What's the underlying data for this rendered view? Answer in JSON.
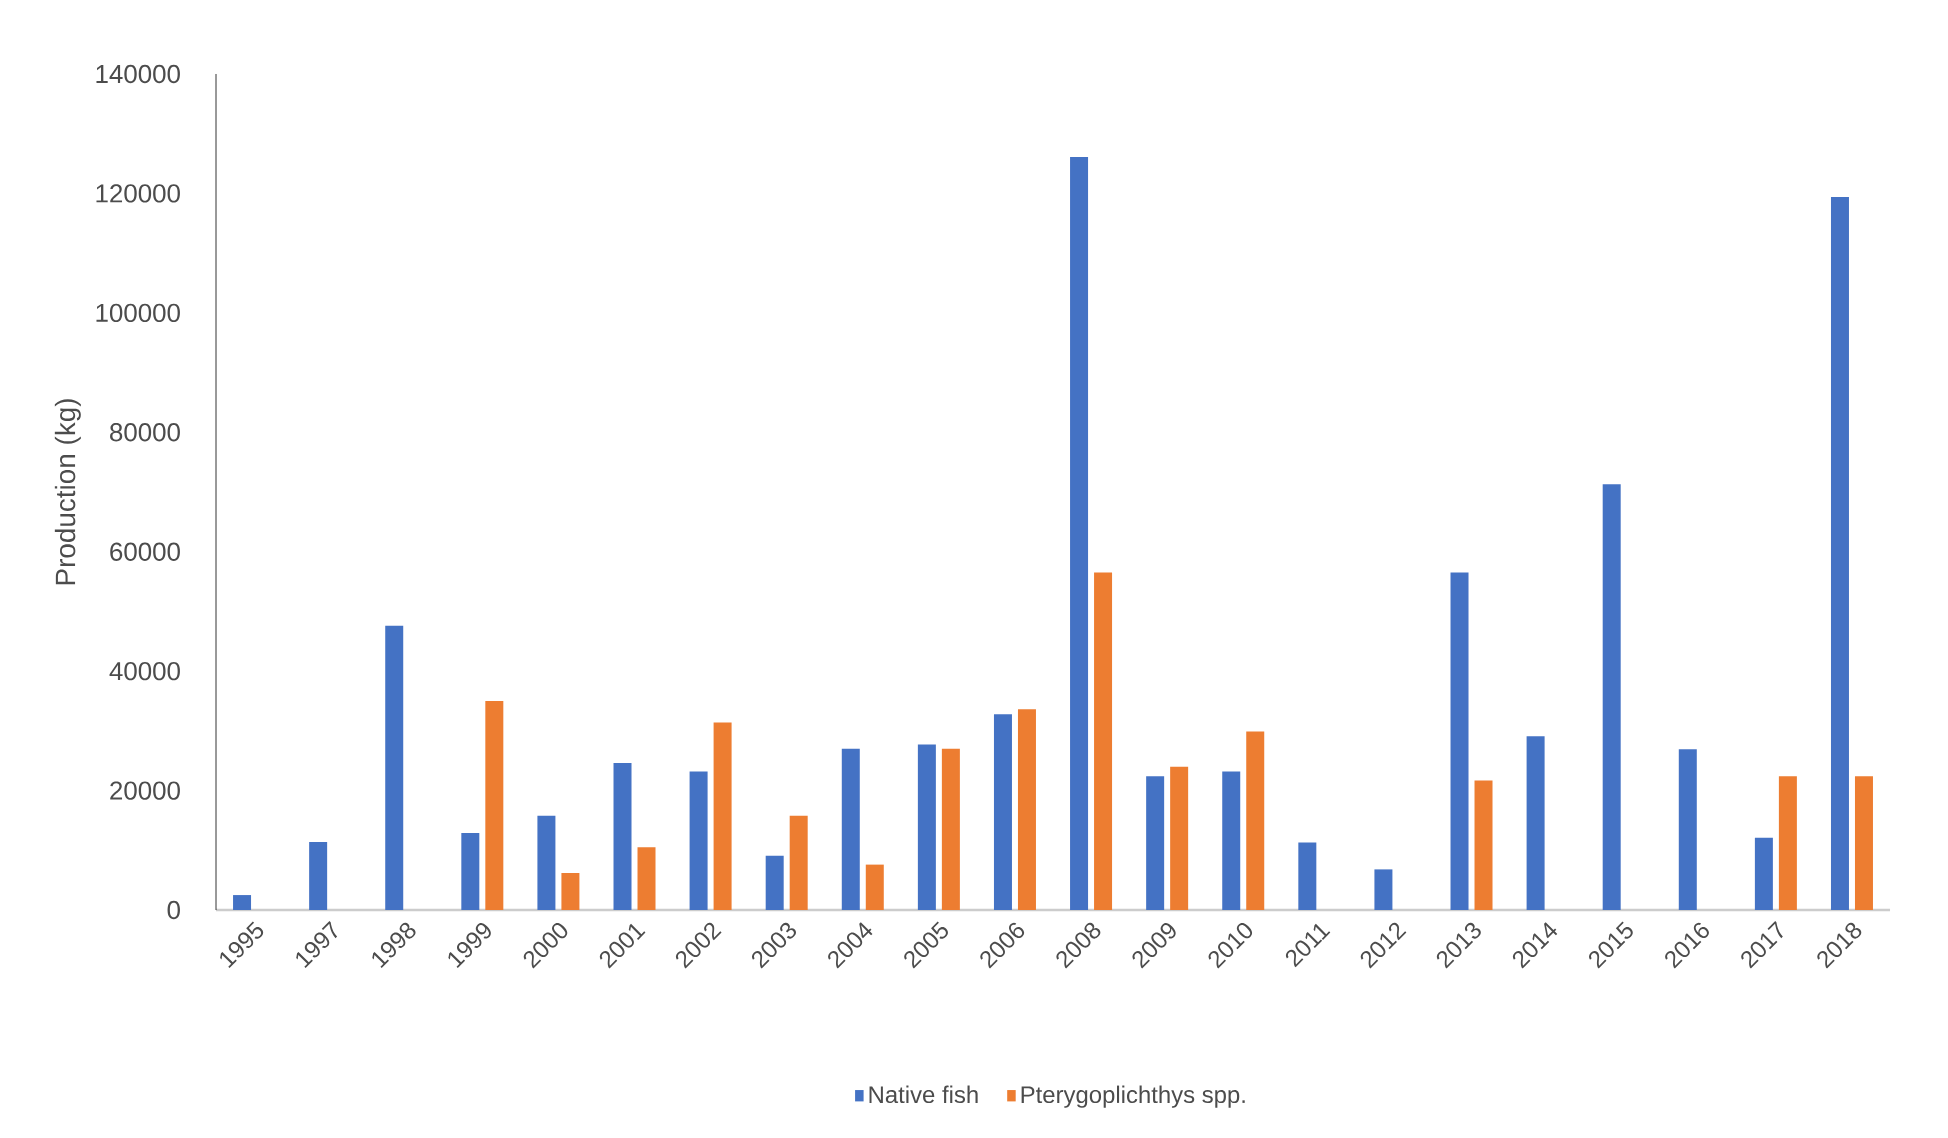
{
  "chart_data": {
    "type": "bar",
    "ylabel": "Production (kg)",
    "categories": [
      "1995",
      "1997",
      "1998",
      "1999",
      "2000",
      "2001",
      "2002",
      "2003",
      "2004",
      "2005",
      "2006",
      "2008",
      "2009",
      "2010",
      "2011",
      "2012",
      "2013",
      "2014",
      "2015",
      "2016",
      "2017",
      "2018"
    ],
    "series": [
      {
        "name": "Native fish",
        "color": "#4472c4",
        "values": [
          2500,
          11400,
          47600,
          12900,
          15800,
          24600,
          23200,
          9100,
          27000,
          27700,
          32800,
          126100,
          22400,
          23200,
          11300,
          6800,
          56500,
          29100,
          71300,
          26900,
          12100,
          119400
        ]
      },
      {
        "name": "Pterygoplichthys spp.",
        "color": "#ed7d31",
        "values": [
          null,
          null,
          null,
          35000,
          6200,
          10500,
          31400,
          15800,
          7600,
          27000,
          33600,
          56500,
          24000,
          29900,
          null,
          null,
          21700,
          null,
          null,
          null,
          22400,
          22400
        ]
      }
    ],
    "ylim": [
      0,
      140000
    ],
    "yticks": [
      0,
      20000,
      40000,
      60000,
      80000,
      100000,
      120000,
      140000
    ],
    "grid": false,
    "legend": "bottom"
  }
}
